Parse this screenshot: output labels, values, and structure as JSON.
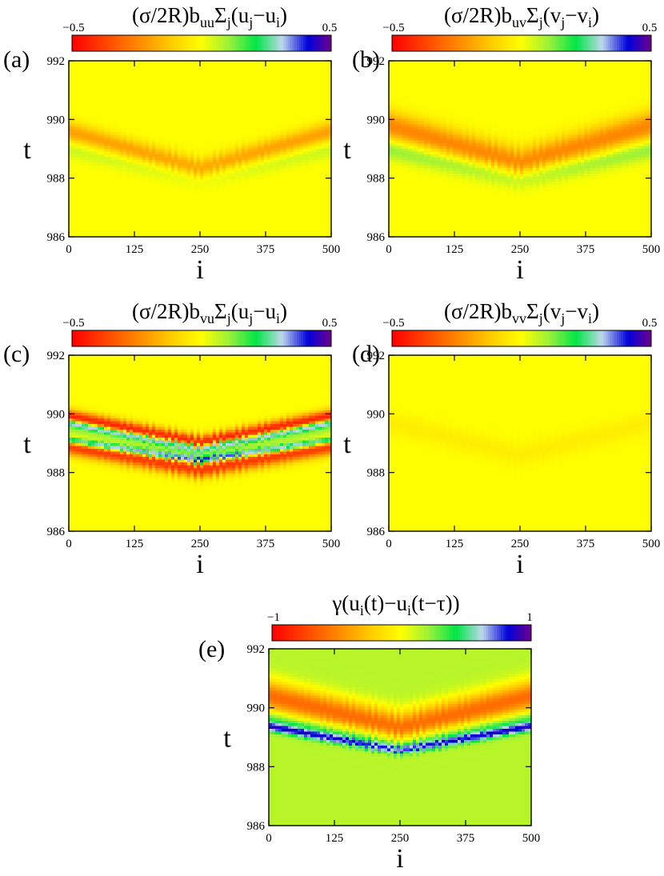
{
  "chart_data": [
    {
      "type": "heatmap",
      "panel_label": "(a)",
      "title_parts": {
        "lead": "(σ/2R)b",
        "sub1": "uu",
        "sym": "Σ",
        "sub2": "j",
        "p1": "(u",
        "sub3": "j",
        "p2": "−u",
        "sub4": "i",
        "p3": ")"
      },
      "colorbar": {
        "min": -0.5,
        "max": 0.5,
        "min_label": "−0.5",
        "max_label": "0.5"
      },
      "xlabel": "i",
      "ylabel": "t",
      "xticks": [
        "0",
        "125",
        "250",
        "375",
        "500"
      ],
      "yticks": [
        "986",
        "988",
        "990",
        "992"
      ],
      "xlim": [
        0,
        500
      ],
      "ylim": [
        986,
        992
      ],
      "background_value": 0.0,
      "bands": [
        {
          "edge_t": 989.6,
          "center_t": 988.3,
          "width_t": 0.35,
          "value": -0.2
        },
        {
          "edge_t": 989.0,
          "center_t": 988.0,
          "width_t": 0.3,
          "value": 0.06
        }
      ]
    },
    {
      "type": "heatmap",
      "panel_label": "(b)",
      "title_parts": {
        "lead": "(σ/2R)b",
        "sub1": "uv",
        "sym": "Σ",
        "sub2": "j",
        "p1": "(v",
        "sub3": "j",
        "p2": "−v",
        "sub4": "i",
        "p3": ")"
      },
      "colorbar": {
        "min": -0.5,
        "max": 0.5,
        "min_label": "−0.5",
        "max_label": "0.5"
      },
      "xlabel": "i",
      "ylabel": "t",
      "xticks": [
        "0",
        "125",
        "250",
        "375",
        "500"
      ],
      "yticks": [
        "986",
        "988",
        "990",
        "992"
      ],
      "xlim": [
        0,
        500
      ],
      "ylim": [
        986,
        992
      ],
      "background_value": 0.0,
      "bands": [
        {
          "edge_t": 989.8,
          "center_t": 988.5,
          "width_t": 0.5,
          "value": -0.25
        },
        {
          "edge_t": 989.0,
          "center_t": 988.0,
          "width_t": 0.35,
          "value": 0.12
        }
      ]
    },
    {
      "type": "heatmap",
      "panel_label": "(c)",
      "title_parts": {
        "lead": "(σ/2R)b",
        "sub1": "vu",
        "sym": "Σ",
        "sub2": "j",
        "p1": "(u",
        "sub3": "j",
        "p2": "−u",
        "sub4": "i",
        "p3": ")"
      },
      "colorbar": {
        "min": -0.5,
        "max": 0.5,
        "min_label": "−0.5",
        "max_label": "0.5"
      },
      "xlabel": "i",
      "ylabel": "t",
      "xticks": [
        "0",
        "125",
        "250",
        "375",
        "500"
      ],
      "yticks": [
        "986",
        "988",
        "990",
        "992"
      ],
      "xlim": [
        0,
        500
      ],
      "ylim": [
        986,
        992
      ],
      "background_value": 0.0,
      "bands": [
        {
          "edge_t": 989.9,
          "center_t": 989.0,
          "width_t": 0.25,
          "value": -0.45
        },
        {
          "edge_t": 989.7,
          "center_t": 988.8,
          "width_t": 0.12,
          "value": 0.5
        },
        {
          "edge_t": 989.45,
          "center_t": 988.6,
          "width_t": 0.2,
          "value": 0.12
        },
        {
          "edge_t": 989.1,
          "center_t": 988.4,
          "width_t": 0.12,
          "value": 0.5
        },
        {
          "edge_t": 988.9,
          "center_t": 988.1,
          "width_t": 0.3,
          "value": -0.4
        }
      ]
    },
    {
      "type": "heatmap",
      "panel_label": "(d)",
      "title_parts": {
        "lead": "(σ/2R)b",
        "sub1": "vv",
        "sym": "Σ",
        "sub2": "j",
        "p1": "(v",
        "sub3": "j",
        "p2": "−v",
        "sub4": "i",
        "p3": ")"
      },
      "colorbar": {
        "min": -0.5,
        "max": 0.5,
        "min_label": "−0.5",
        "max_label": "0.5"
      },
      "xlabel": "i",
      "ylabel": "t",
      "xticks": [
        "0",
        "125",
        "250",
        "375",
        "500"
      ],
      "yticks": [
        "986",
        "988",
        "990",
        "992"
      ],
      "xlim": [
        0,
        500
      ],
      "ylim": [
        986,
        992
      ],
      "background_value": 0.0,
      "bands": [
        {
          "edge_t": 989.7,
          "center_t": 988.6,
          "width_t": 0.4,
          "value": -0.04
        }
      ]
    },
    {
      "type": "heatmap",
      "panel_label": "(e)",
      "title_parts": {
        "lead": "γ(u",
        "sub1": "i",
        "sym": "(t)−u",
        "sub2": "i",
        "p1": "(t−τ))",
        "sub3": "",
        "p2": "",
        "sub4": "",
        "p3": ""
      },
      "colorbar": {
        "min": -1,
        "max": 1,
        "min_label": "−1",
        "max_label": "1"
      },
      "xlabel": "i",
      "ylabel": "t",
      "xticks": [
        "0",
        "125",
        "250",
        "375",
        "500"
      ],
      "yticks": [
        "986",
        "988",
        "990",
        "992"
      ],
      "xlim": [
        0,
        500
      ],
      "ylim": [
        986,
        992
      ],
      "background_value": 0.15,
      "bands": [
        {
          "edge_t": 990.4,
          "center_t": 989.3,
          "width_t": 0.55,
          "value": -0.75
        },
        {
          "edge_t": 989.6,
          "center_t": 988.8,
          "width_t": 0.3,
          "value": 0.3
        },
        {
          "edge_t": 989.35,
          "center_t": 988.55,
          "width_t": 0.15,
          "value": 0.6
        }
      ]
    }
  ]
}
